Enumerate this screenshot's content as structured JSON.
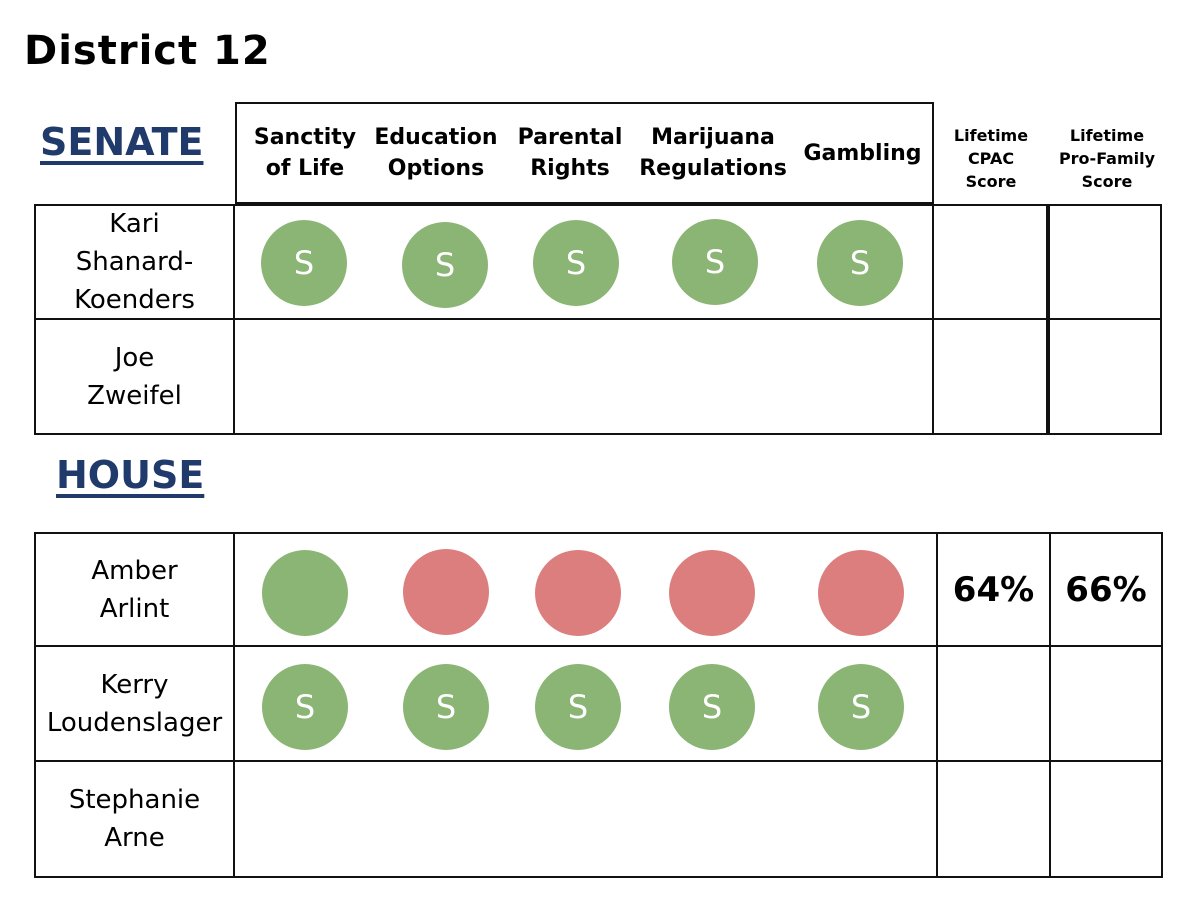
{
  "page_title": "District 12",
  "colors": {
    "support": "#8bb574",
    "oppose": "#dc7e7e",
    "heading": "#1f3a6b"
  },
  "issue_headers": [
    "Sanctity\nof Life",
    "Education\nOptions",
    "Parental\nRights",
    "Marijuana\nRegulations",
    "Gambling"
  ],
  "score_headers": {
    "cpac": "Lifetime\nCPAC\nScore",
    "profamily": "Lifetime\nPro-Family\nScore"
  },
  "senate": {
    "heading": "SENATE",
    "candidates": [
      {
        "name": "Kari\nShanard-\nKoenders",
        "ratings": [
          "S",
          "S",
          "S",
          "S",
          "S"
        ],
        "statuses": [
          "support",
          "support",
          "support",
          "support",
          "support"
        ],
        "cpac": "",
        "profamily": ""
      },
      {
        "name": "Joe\nZweifel",
        "ratings": [],
        "statuses": [],
        "cpac": "",
        "profamily": ""
      }
    ]
  },
  "house": {
    "heading": "HOUSE",
    "candidates": [
      {
        "name": "Amber\nArlint",
        "ratings": [
          "",
          "",
          "",
          "",
          ""
        ],
        "statuses": [
          "support",
          "oppose",
          "oppose",
          "oppose",
          "oppose"
        ],
        "cpac": "64%",
        "profamily": "66%"
      },
      {
        "name": "Kerry\nLoudenslager",
        "ratings": [
          "S",
          "S",
          "S",
          "S",
          "S"
        ],
        "statuses": [
          "support",
          "support",
          "support",
          "support",
          "support"
        ],
        "cpac": "",
        "profamily": ""
      },
      {
        "name": "Stephanie\nArne",
        "ratings": [],
        "statuses": [],
        "cpac": "",
        "profamily": ""
      }
    ]
  }
}
